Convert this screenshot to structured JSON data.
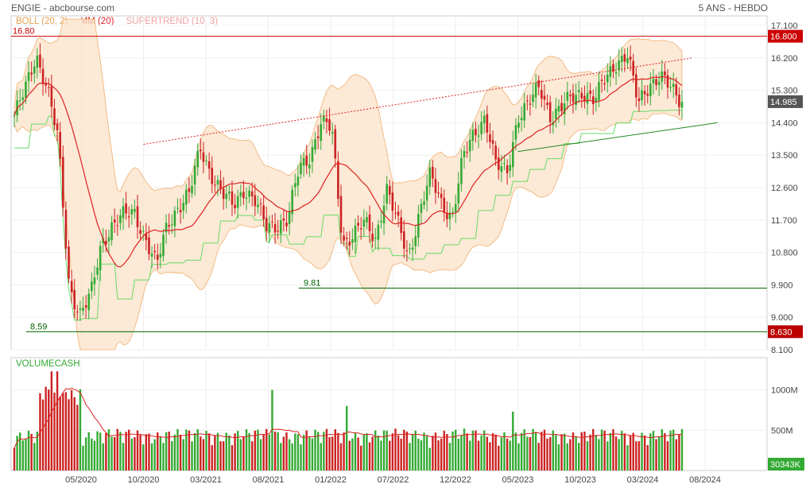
{
  "header": {
    "title": "ENGIE - abcbourse.com",
    "period": "5 ANS - HEBDO"
  },
  "legend": [
    {
      "label": "BOLL (20, 2)",
      "color": "#e8a050"
    },
    {
      "label": "MM (20)",
      "color": "#dd2222"
    },
    {
      "label": "SUPERTREND (10, 3)",
      "color": "#f0a0a0"
    }
  ],
  "volume_label": "VOLUMECASH",
  "chart_data": [
    {
      "type": "candlestick",
      "x_ticks": [
        "05/2020",
        "10/2020",
        "03/2021",
        "08/2021",
        "01/2022",
        "07/2022",
        "12/2022",
        "05/2023",
        "10/2023",
        "03/2024",
        "08/2024"
      ],
      "y_ticks": [
        17.1,
        16.2,
        15.3,
        14.4,
        13.5,
        12.6,
        11.7,
        10.8,
        9.9,
        9.0,
        8.1
      ],
      "ylim": [
        8.1,
        17.1
      ],
      "last_price": "14.985",
      "hlines": [
        {
          "label": "16.80",
          "axis_label": "16.800",
          "value": 16.8,
          "color": "#cc0000"
        },
        {
          "label": "9.81",
          "value": 9.81,
          "color": "#006600"
        },
        {
          "label": "8.59",
          "axis_label": "8.630",
          "value": 8.6,
          "color": "#006600"
        }
      ],
      "price_path": [
        14.6,
        15.3,
        16.3,
        15.4,
        13.9,
        9.9,
        9.1,
        9.6,
        11.1,
        11.6,
        11.8,
        11.9,
        11.2,
        10.4,
        11.6,
        12.1,
        12.4,
        13.7,
        13.0,
        12.4,
        12.1,
        12.6,
        12.2,
        11.5,
        11.6,
        11.7,
        13.1,
        13.5,
        14.4,
        14.2,
        11.1,
        11.3,
        11.6,
        11.2,
        12.6,
        11.6,
        10.7,
        11.9,
        12.9,
        12.2,
        11.8,
        13.4,
        14.1,
        14.6,
        13.2,
        13.0,
        14.6,
        14.9,
        15.4,
        14.6,
        14.8,
        15.1,
        15.3,
        15.0,
        15.6,
        16.1,
        16.3,
        14.9,
        15.5,
        15.7,
        15.3,
        14.985
      ],
      "trendlines": [
        {
          "from": [
            "2020-10",
            13.8
          ],
          "to": [
            "2024-06",
            16.2
          ],
          "style": "dotted",
          "color": "#dd2222"
        },
        {
          "from": [
            "2023-04",
            13.6
          ],
          "to": [
            "2024-08",
            14.4
          ],
          "style": "solid",
          "color": "#228822"
        }
      ]
    },
    {
      "type": "bar",
      "title": "VOLUMECASH",
      "y_ticks": [
        "1000M",
        "500M"
      ],
      "ylim": [
        0,
        1400
      ],
      "unit": "M",
      "last_value": "30343K"
    }
  ]
}
